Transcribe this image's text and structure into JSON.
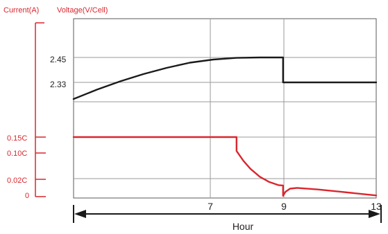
{
  "chart_data": {
    "type": "line",
    "left_axis_label": "Current(A)",
    "right_axis_label": "Voltage(V/Cell)",
    "xlabel": "Hour",
    "x_ticks": [
      "7",
      "9",
      "13"
    ],
    "voltage_ticks": [
      "2.45",
      "2.33"
    ],
    "current_ticks": [
      "0.15C",
      "0.10C",
      "0.02C",
      "0"
    ],
    "xlim": [
      0,
      13
    ],
    "series": [
      {
        "color": "#1a1a1a",
        "points": [
          [
            0,
            2.25
          ],
          [
            1,
            2.295
          ],
          [
            2,
            2.335
          ],
          [
            3,
            2.37
          ],
          [
            4,
            2.4
          ],
          [
            5,
            2.425
          ],
          [
            6,
            2.44
          ],
          [
            7,
            2.448
          ],
          [
            8,
            2.45
          ],
          [
            9,
            2.45
          ],
          [
            9,
            2.33
          ],
          [
            13,
            2.33
          ]
        ]
      },
      {
        "color": "#d9262c",
        "points": [
          [
            0,
            0.15
          ],
          [
            7,
            0.15
          ],
          [
            7,
            0.115
          ],
          [
            7.3,
            0.09
          ],
          [
            7.6,
            0.07
          ],
          [
            8,
            0.05
          ],
          [
            8.4,
            0.037
          ],
          [
            8.8,
            0.029
          ],
          [
            9,
            0.028
          ],
          [
            9,
            0.002
          ],
          [
            9.1,
            0.012
          ],
          [
            9.3,
            0.02
          ],
          [
            9.6,
            0.022
          ],
          [
            10.5,
            0.018
          ],
          [
            11.5,
            0.012
          ],
          [
            13,
            0.003
          ]
        ]
      }
    ]
  }
}
